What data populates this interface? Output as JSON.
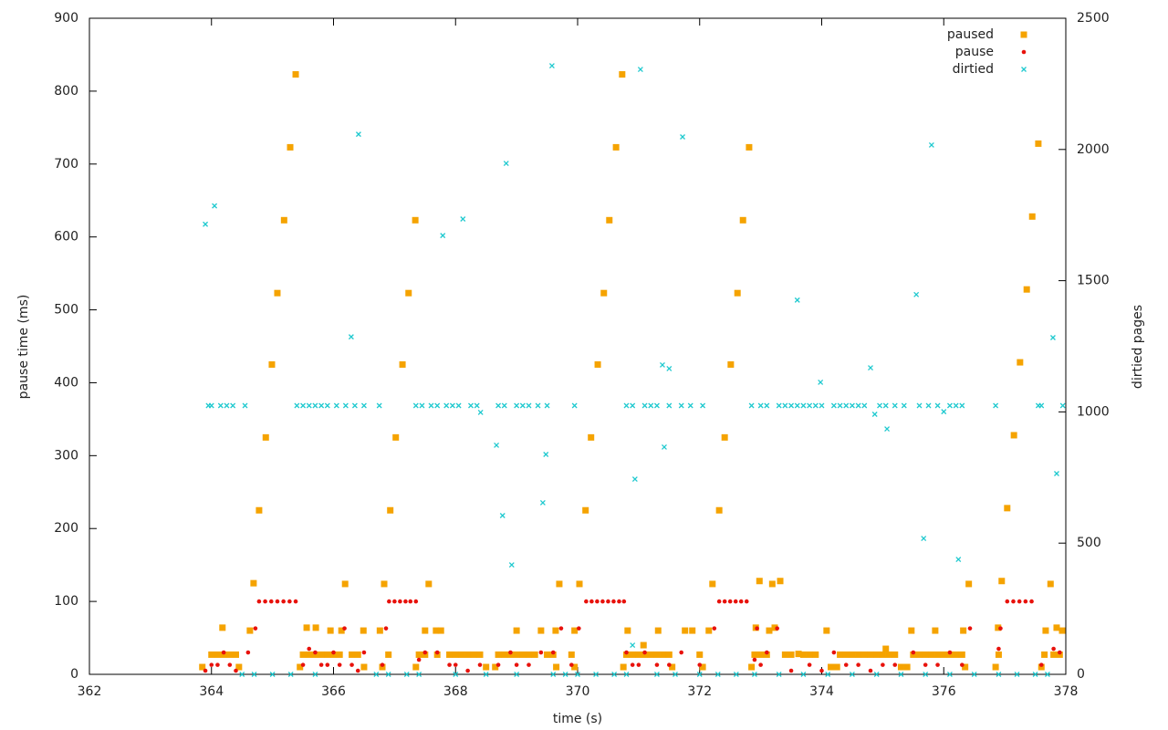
{
  "chart_data": {
    "type": "scatter",
    "x_label": "time (s)",
    "y_label": "pause time (ms)",
    "y2_label": "dirtied pages",
    "xlim": [
      362,
      378
    ],
    "xticks": [
      362,
      364,
      366,
      368,
      370,
      372,
      374,
      376,
      378
    ],
    "ylim": [
      0,
      900
    ],
    "yticks": [
      0,
      100,
      200,
      300,
      400,
      500,
      600,
      700,
      800,
      900
    ],
    "y2lim": [
      0,
      2500
    ],
    "y2ticks": [
      0,
      500,
      1000,
      1500,
      2000,
      2500
    ],
    "legend": "top-right",
    "grid": false,
    "series": [
      {
        "name": "paused",
        "color": "#f5a300",
        "marker": "square",
        "x": [
          364.69,
          364.78,
          364.89,
          364.99,
          365.08,
          365.19,
          365.29,
          365.38,
          366.19,
          366.49,
          366.83,
          366.93,
          367.02,
          367.13,
          367.23,
          367.34,
          367.56,
          369.7,
          370.03,
          370.13,
          370.22,
          370.33,
          370.43,
          370.52,
          370.63,
          370.73,
          372.21,
          372.32,
          372.41,
          372.51,
          372.62,
          372.71,
          372.81,
          372.98,
          373.19,
          373.32,
          376.41,
          376.95,
          377.04,
          377.15,
          377.25,
          377.36,
          377.45,
          377.55,
          377.75,
          364.18,
          364.63,
          365.56,
          365.71,
          365.95,
          366.13,
          366.76,
          367.5,
          367.68,
          367.76,
          369.0,
          369.4,
          369.64,
          369.95,
          370.82,
          371.08,
          371.32,
          371.76,
          371.88,
          372.15,
          372.92,
          373.14,
          373.23,
          373.62,
          374.08,
          375.47,
          375.86,
          376.32,
          376.89,
          377.67,
          377.85,
          377.94,
          364.0,
          364.1,
          364.2,
          364.3,
          364.4,
          365.5,
          365.6,
          365.7,
          365.8,
          365.9,
          366.0,
          366.1,
          366.3,
          366.4,
          366.9,
          367.4,
          367.5,
          367.7,
          367.9,
          368.0,
          368.1,
          368.2,
          368.3,
          368.4,
          368.7,
          368.8,
          368.9,
          369.0,
          369.1,
          369.2,
          369.3,
          369.5,
          369.6,
          369.9,
          370.8,
          370.9,
          371.0,
          371.1,
          371.2,
          371.3,
          371.4,
          371.5,
          372.0,
          372.9,
          373.0,
          373.1,
          373.4,
          373.5,
          373.7,
          373.8,
          373.9,
          374.3,
          374.4,
          374.5,
          374.6,
          374.7,
          374.8,
          374.9,
          375.0,
          375.05,
          375.1,
          375.2,
          375.5,
          375.6,
          375.7,
          375.8,
          375.9,
          376.0,
          376.1,
          376.2,
          376.3,
          376.9,
          377.65,
          377.8,
          377.9,
          363.85,
          364.45,
          365.45,
          366.5,
          366.8,
          367.35,
          368.5,
          368.65,
          369.65,
          369.95,
          370.75,
          371.55,
          372.05,
          372.85,
          374.15,
          374.25,
          375.3,
          375.4,
          376.35,
          376.85,
          377.6
        ],
        "values": [
          125,
          225,
          325,
          425,
          523,
          623,
          723,
          823,
          124,
          60,
          124,
          225,
          325,
          425,
          523,
          623,
          124,
          124,
          124,
          225,
          325,
          425,
          523,
          623,
          723,
          823,
          124,
          225,
          325,
          425,
          523,
          623,
          723,
          128,
          124,
          128,
          124,
          128,
          228,
          328,
          428,
          528,
          628,
          728,
          124,
          64,
          60,
          64,
          64,
          60,
          60,
          60,
          60,
          60,
          60,
          60,
          60,
          60,
          60,
          60,
          40,
          60,
          60,
          60,
          60,
          64,
          60,
          64,
          28,
          60,
          60,
          60,
          60,
          64,
          60,
          64,
          60,
          27,
          27,
          27,
          27,
          27,
          27,
          27,
          27,
          27,
          27,
          27,
          27,
          27,
          27,
          27,
          27,
          27,
          27,
          27,
          27,
          27,
          27,
          27,
          27,
          27,
          27,
          27,
          27,
          27,
          27,
          27,
          27,
          27,
          27,
          27,
          27,
          27,
          27,
          27,
          27,
          27,
          27,
          27,
          27,
          27,
          27,
          27,
          27,
          27,
          27,
          27,
          27,
          27,
          27,
          27,
          27,
          27,
          27,
          27,
          35,
          27,
          27,
          27,
          27,
          27,
          27,
          27,
          27,
          27,
          27,
          27,
          27,
          27,
          27,
          27,
          10,
          10,
          10,
          10,
          10,
          10,
          10,
          10,
          10,
          10,
          10,
          10,
          10,
          10,
          10,
          10,
          10,
          10,
          10,
          10,
          10
        ]
      },
      {
        "name": "pause",
        "color": "#e8120c",
        "marker": "circle",
        "x": [
          364.78,
          364.88,
          364.98,
          365.08,
          365.18,
          365.28,
          365.38,
          366.91,
          367.0,
          367.09,
          367.18,
          367.26,
          367.35,
          370.14,
          370.23,
          370.32,
          370.41,
          370.5,
          370.59,
          370.68,
          370.76,
          372.32,
          372.41,
          372.5,
          372.59,
          372.68,
          372.77,
          377.04,
          377.14,
          377.24,
          377.34,
          377.44,
          364.72,
          366.18,
          366.86,
          369.73,
          370.02,
          372.24,
          372.94,
          373.27,
          376.43,
          376.93,
          363.9,
          364.0,
          364.1,
          364.2,
          364.3,
          364.4,
          364.6,
          365.5,
          365.6,
          365.7,
          365.8,
          365.9,
          366.0,
          366.1,
          366.3,
          366.4,
          366.5,
          366.8,
          367.4,
          367.5,
          367.7,
          367.9,
          368.0,
          368.2,
          368.4,
          368.7,
          368.9,
          369.0,
          369.2,
          369.4,
          369.6,
          369.9,
          370.8,
          370.9,
          371.0,
          371.1,
          371.3,
          371.5,
          371.7,
          372.0,
          372.9,
          373.0,
          373.1,
          373.5,
          373.8,
          374.0,
          374.2,
          374.4,
          374.6,
          374.8,
          375.0,
          375.2,
          375.5,
          375.7,
          375.9,
          376.1,
          376.3,
          376.9,
          377.6,
          377.8,
          377.9
        ],
        "values": [
          100,
          100,
          100,
          100,
          100,
          100,
          100,
          100,
          100,
          100,
          100,
          100,
          100,
          100,
          100,
          100,
          100,
          100,
          100,
          100,
          100,
          100,
          100,
          100,
          100,
          100,
          100,
          100,
          100,
          100,
          100,
          100,
          63,
          63,
          63,
          63,
          63,
          63,
          63,
          63,
          63,
          63,
          5,
          13,
          13,
          30,
          13,
          5,
          30,
          13,
          35,
          30,
          13,
          13,
          30,
          13,
          13,
          5,
          30,
          13,
          20,
          30,
          30,
          13,
          13,
          5,
          13,
          13,
          30,
          13,
          13,
          30,
          30,
          13,
          30,
          13,
          13,
          30,
          13,
          13,
          30,
          13,
          20,
          13,
          30,
          5,
          13,
          5,
          30,
          13,
          13,
          5,
          13,
          13,
          30,
          13,
          13,
          30,
          13,
          35,
          13,
          35,
          30
        ]
      },
      {
        "name": "dirtied",
        "color": "#1fc9cf",
        "marker": "cross",
        "axis": "y2",
        "x": [
          363.9,
          364.05,
          366.29,
          366.41,
          367.79,
          368.12,
          368.41,
          368.67,
          368.77,
          368.83,
          368.92,
          369.43,
          369.48,
          369.58,
          370.9,
          370.94,
          371.03,
          371.39,
          371.42,
          371.5,
          371.72,
          373.6,
          373.98,
          374.8,
          374.87,
          375.07,
          375.55,
          375.67,
          375.8,
          376.0,
          376.24,
          377.79,
          377.85,
          363.95,
          364.0,
          364.15,
          364.25,
          364.35,
          364.55,
          365.4,
          365.5,
          365.6,
          365.7,
          365.8,
          365.9,
          366.05,
          366.2,
          366.35,
          366.5,
          366.75,
          367.35,
          367.45,
          367.6,
          367.7,
          367.85,
          367.95,
          368.05,
          368.25,
          368.35,
          368.7,
          368.8,
          369.0,
          369.1,
          369.2,
          369.35,
          369.5,
          369.95,
          370.8,
          370.9,
          371.1,
          371.2,
          371.3,
          371.5,
          371.7,
          371.85,
          372.05,
          372.85,
          373.0,
          373.1,
          373.3,
          373.4,
          373.5,
          373.6,
          373.7,
          373.8,
          373.9,
          374.0,
          374.2,
          374.3,
          374.4,
          374.5,
          374.6,
          374.7,
          374.95,
          375.05,
          375.2,
          375.35,
          375.6,
          375.75,
          375.9,
          376.1,
          376.2,
          376.3,
          376.85,
          377.55,
          377.6,
          377.95,
          364.5,
          364.7,
          365.0,
          365.3,
          365.7,
          366.7,
          366.9,
          367.2,
          367.4,
          368.0,
          368.5,
          369.0,
          369.6,
          369.8,
          370.0,
          370.3,
          370.6,
          370.8,
          371.3,
          371.6,
          372.0,
          372.3,
          372.6,
          372.9,
          373.3,
          373.7,
          374.1,
          374.5,
          374.9,
          375.3,
          375.7,
          376.1,
          376.5,
          376.9,
          377.2,
          377.5,
          377.7
        ],
        "values": [
          1715,
          1785,
          1286,
          2058,
          1672,
          1735,
          998,
          873,
          605,
          1947,
          417,
          654,
          838,
          2319,
          111,
          744,
          2305,
          1179,
          866,
          1165,
          2048,
          1426,
          1113,
          1168,
          991,
          935,
          1447,
          518,
          2017,
          1001,
          438,
          1283,
          765,
          1024,
          1024,
          1024,
          1024,
          1024,
          1024,
          1024,
          1024,
          1024,
          1024,
          1024,
          1024,
          1024,
          1024,
          1024,
          1024,
          1024,
          1024,
          1024,
          1024,
          1024,
          1024,
          1024,
          1024,
          1024,
          1024,
          1024,
          1024,
          1024,
          1024,
          1024,
          1024,
          1024,
          1024,
          1024,
          1024,
          1024,
          1024,
          1024,
          1024,
          1024,
          1024,
          1024,
          1024,
          1024,
          1024,
          1024,
          1024,
          1024,
          1024,
          1024,
          1024,
          1024,
          1024,
          1024,
          1024,
          1024,
          1024,
          1024,
          1024,
          1024,
          1024,
          1024,
          1024,
          1024,
          1024,
          1024,
          1024,
          1024,
          1024,
          1024,
          1024,
          1024,
          1024,
          0,
          0,
          0,
          0,
          0,
          0,
          0,
          0,
          0,
          0,
          0,
          0,
          0,
          0,
          0,
          0,
          0,
          0,
          0,
          0,
          0,
          0,
          0,
          0,
          0,
          0,
          0,
          0,
          0,
          0,
          0,
          0,
          0,
          0,
          0,
          0,
          0
        ]
      }
    ]
  }
}
